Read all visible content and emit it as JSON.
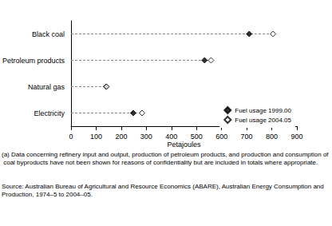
{
  "chart_data": {
    "type": "dot",
    "orientation": "horizontal",
    "categories": [
      "Black coal",
      "Petroleum products",
      "Natural gas",
      "Electricity"
    ],
    "series": [
      {
        "name": "Fuel usage 1999.00",
        "color": "#000000",
        "marker": "diamond",
        "values": [
          710,
          532,
          140,
          248
        ]
      },
      {
        "name": "Fuel usage 2004.05",
        "color": "#000000",
        "marker": "open_diamond",
        "values": [
          805,
          558,
          141,
          283
        ]
      }
    ],
    "xlabel": "Petajoules",
    "xlim": [
      0,
      900
    ],
    "xticks": [
      0,
      100,
      200,
      300,
      400,
      500,
      600,
      700,
      800,
      900
    ],
    "grid": false,
    "legend": "lower right",
    "footnote": "(a) Data concerning refinery input and output, production of petroleum products, and production and consumption of coal byproducts have not been shown for reasons of confidentiality but are included in totals where appropriate.",
    "source": "Source: Australian Bureau of Agricultural and Resource Economics (ABARE), Australian Energy Consumption and Production, 1974–5 to 2004–05."
  }
}
